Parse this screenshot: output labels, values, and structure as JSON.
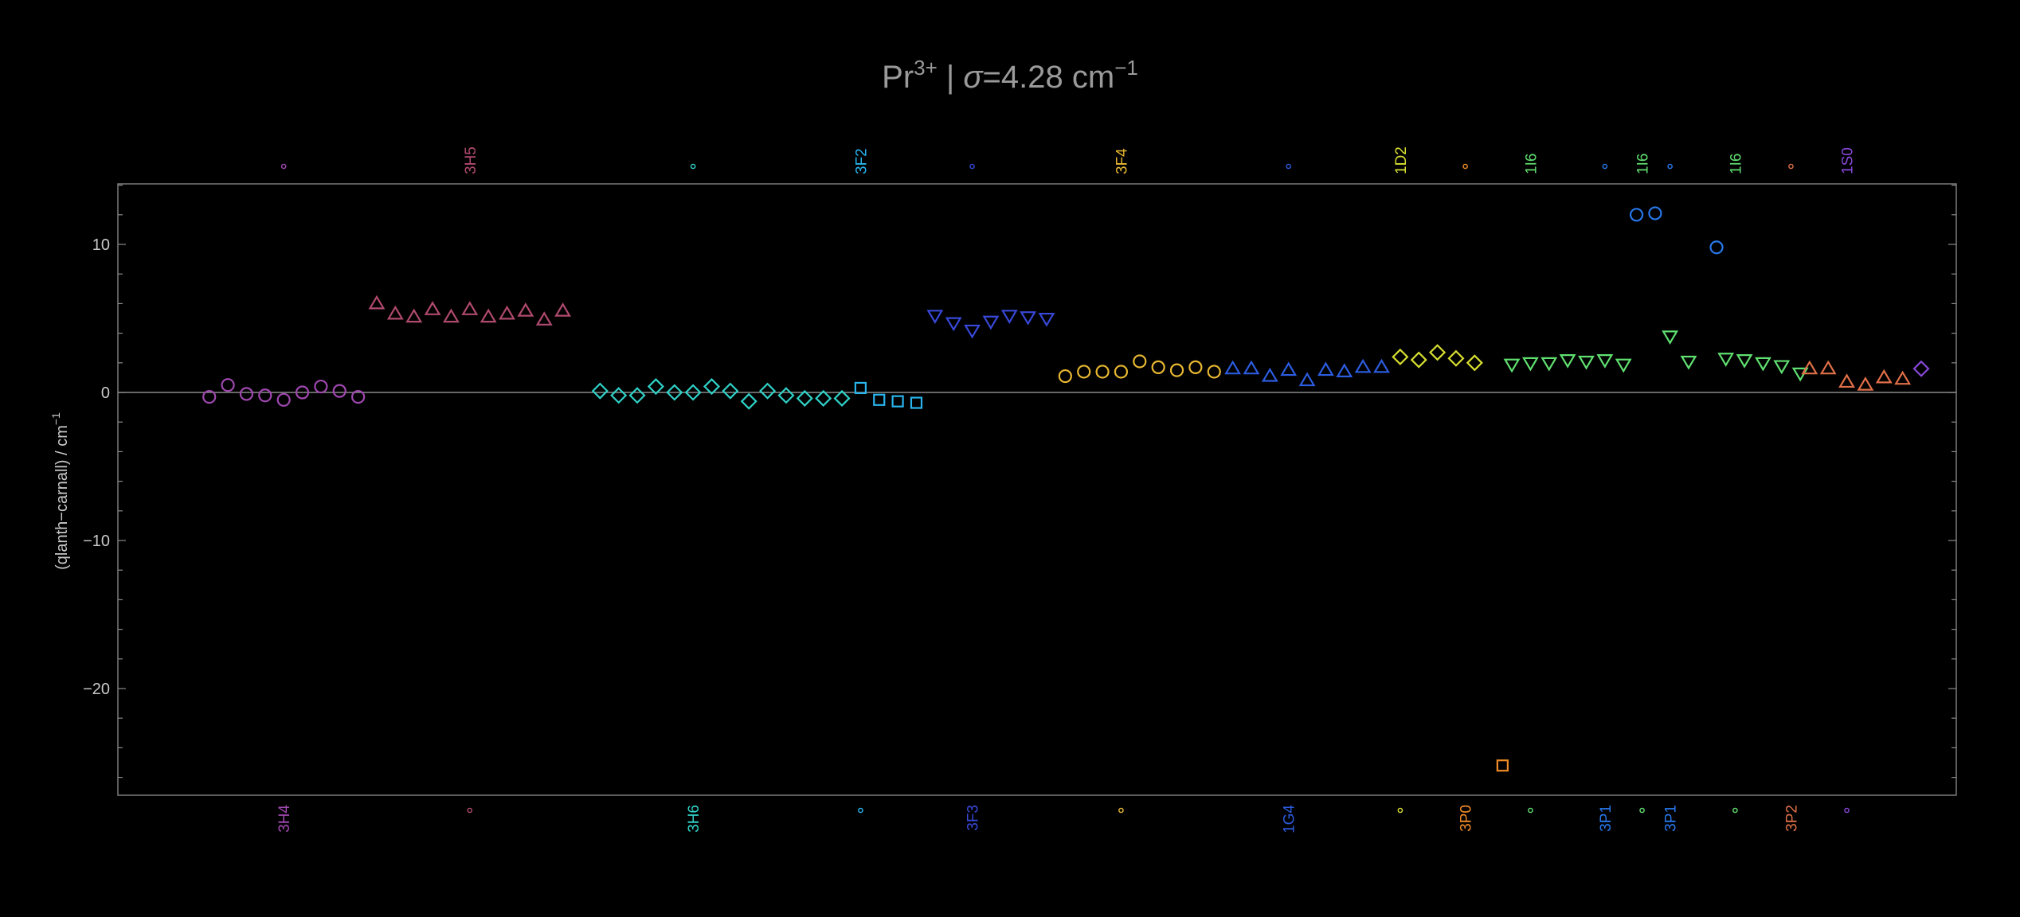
{
  "title": {
    "main_prefix": "Pr",
    "superscript": "3+",
    "separator": " | ",
    "sigma_symbol": "σ",
    "sigma_text": "=4.28 cm",
    "sigma_unit_exp": "−1"
  },
  "chart_data": {
    "type": "scatter",
    "ylabel_text": "(qlanth−carnall) / cm",
    "ylabel_exp": "−1",
    "ylim": [
      -27.5,
      14
    ],
    "xlim": [
      0.5,
      91
    ],
    "yticks_major": [
      10,
      0,
      -10,
      -20
    ],
    "ytick_labels": [
      "10",
      "0",
      "−10",
      "−20"
    ],
    "zero_line": true,
    "grid": false,
    "colors": {
      "3H4": "#a048b0",
      "3H5": "#b04a6e",
      "3H6": "#30d2c8",
      "3F2": "#28b4ec",
      "3F3": "#3848d8",
      "3F4": "#e8b832",
      "1G4": "#2c5ce0",
      "1D2": "#d8e030",
      "3P0": "#f08c28",
      "1I6": "#60e070",
      "3P1": "#2878ec",
      "3P2": "#e07048",
      "1S0": "#8848d8"
    },
    "top_labels": [
      {
        "text": "3H5",
        "state": "3H5",
        "x": 17
      },
      {
        "text": "3F2",
        "state": "3F2",
        "x": 38
      },
      {
        "text": "3F4",
        "state": "3F4",
        "x": 52
      },
      {
        "text": "1D2",
        "state": "1D2",
        "x": 67
      },
      {
        "text": "1I6",
        "state": "1I6",
        "x": 74
      },
      {
        "text": "1I6",
        "state": "1I6",
        "x": 80
      },
      {
        "text": "1I6",
        "state": "1I6",
        "x": 85
      },
      {
        "text": "1S0",
        "state": "1S0",
        "x": 91
      }
    ],
    "top_dots": [
      {
        "state": "3H4",
        "x": 7
      },
      {
        "state": "3H6",
        "x": 29
      },
      {
        "state": "3F3",
        "x": 44
      },
      {
        "state": "1G4",
        "x": 61
      },
      {
        "state": "3P0",
        "x": 70.5
      },
      {
        "state": "3P1",
        "x": 78
      },
      {
        "state": "3P1",
        "x": 81.5
      },
      {
        "state": "3P2",
        "x": 88
      }
    ],
    "bottom_labels": [
      {
        "text": "3H4",
        "state": "3H4",
        "x": 7
      },
      {
        "text": "3H6",
        "state": "3H6",
        "x": 29
      },
      {
        "text": "3F3",
        "state": "3F3",
        "x": 44
      },
      {
        "text": "1G4",
        "state": "1G4",
        "x": 61
      },
      {
        "text": "3P0",
        "state": "3P0",
        "x": 70.5
      },
      {
        "text": "3P1",
        "state": "3P1",
        "x": 78
      },
      {
        "text": "3P1",
        "state": "3P1",
        "x": 81.5
      },
      {
        "text": "3P2",
        "state": "3P2",
        "x": 88
      }
    ],
    "bottom_dots": [
      {
        "state": "3H5",
        "x": 17
      },
      {
        "state": "3F2",
        "x": 38
      },
      {
        "state": "3F4",
        "x": 52
      },
      {
        "state": "1D2",
        "x": 67
      },
      {
        "state": "1I6",
        "x": 74
      },
      {
        "state": "1I6",
        "x": 80
      },
      {
        "state": "1I6",
        "x": 85
      },
      {
        "state": "1S0",
        "x": 91
      }
    ],
    "series": [
      {
        "state": "3H4",
        "marker": "circle",
        "x": [
          3,
          4,
          5,
          6,
          7,
          8,
          9,
          10,
          11
        ],
        "y": [
          -0.3,
          0.5,
          -0.1,
          -0.2,
          -0.5,
          -0.0,
          0.4,
          0.1,
          -0.3
        ]
      },
      {
        "state": "3H5",
        "marker": "triangle-up",
        "x": [
          12,
          13,
          14,
          15,
          16,
          17,
          18,
          19,
          20,
          21,
          22
        ],
        "y": [
          6.0,
          5.3,
          5.1,
          5.6,
          5.1,
          5.6,
          5.1,
          5.3,
          5.5,
          4.9,
          5.5
        ]
      },
      {
        "state": "3H6",
        "marker": "diamond",
        "x": [
          24,
          25,
          26,
          27,
          28,
          29,
          30,
          31,
          32,
          33,
          34,
          35,
          36,
          37
        ],
        "y": [
          0.1,
          -0.2,
          -0.2,
          0.4,
          0.0,
          0.0,
          0.4,
          0.1,
          -0.6,
          0.1,
          -0.2,
          -0.4,
          -0.4,
          -0.4
        ]
      },
      {
        "state": "3F2",
        "marker": "square",
        "x": [
          38,
          39,
          40,
          41
        ],
        "y": [
          0.3,
          -0.5,
          -0.6,
          -0.7
        ]
      },
      {
        "state": "3F3",
        "marker": "triangle-down",
        "x": [
          42,
          43,
          44,
          45,
          46,
          47,
          48
        ],
        "y": [
          5.2,
          4.7,
          4.2,
          4.8,
          5.2,
          5.1,
          5.0
        ]
      },
      {
        "state": "3F4",
        "marker": "circle",
        "x": [
          49,
          50,
          51,
          52,
          53,
          54,
          55,
          56,
          57
        ],
        "y": [
          1.1,
          1.4,
          1.4,
          1.4,
          2.1,
          1.7,
          1.5,
          1.7,
          1.4
        ]
      },
      {
        "state": "1G4",
        "marker": "triangle-up",
        "x": [
          58,
          59,
          60,
          61,
          62,
          63,
          64,
          65,
          66
        ],
        "y": [
          1.6,
          1.6,
          1.1,
          1.5,
          0.8,
          1.5,
          1.4,
          1.7,
          1.7
        ]
      },
      {
        "state": "1D2",
        "marker": "diamond",
        "x": [
          67,
          68,
          69,
          70,
          71
        ],
        "y": [
          2.4,
          2.2,
          2.7,
          2.3,
          2.0
        ]
      },
      {
        "state": "3P0",
        "marker": "square",
        "x": [
          72.5
        ],
        "y": [
          -25.2
        ]
      },
      {
        "state": "1I6",
        "marker": "triangle-down",
        "x": [
          73,
          74,
          75,
          76,
          77
        ],
        "y": [
          1.9,
          2.0,
          2.0,
          2.2,
          2.1
        ]
      },
      {
        "state": "1I6",
        "marker": "triangle-down",
        "x": [
          78,
          79
        ],
        "y": [
          2.2,
          1.9
        ]
      },
      {
        "state": "3P1",
        "marker": "circle",
        "x": [
          79.7,
          80.7
        ],
        "y": [
          12.0,
          12.1
        ]
      },
      {
        "state": "1I6",
        "marker": "triangle-down",
        "x": [
          81.5,
          82.5
        ],
        "y": [
          3.8,
          2.1
        ]
      },
      {
        "state": "3P1",
        "marker": "circle",
        "x": [
          84
        ],
        "y": [
          9.8
        ]
      },
      {
        "state": "1I6",
        "marker": "triangle-down",
        "x": [
          84.5,
          85.5,
          86.5,
          87.5,
          88.5
        ],
        "y": [
          2.3,
          2.2,
          2.0,
          1.8,
          1.3
        ]
      },
      {
        "state": "3P2",
        "marker": "triangle-up",
        "x": [
          89,
          90,
          91,
          92,
          93,
          94
        ],
        "y": [
          1.6,
          1.6,
          0.7,
          0.5,
          1.0,
          0.9
        ]
      },
      {
        "state": "1S0",
        "marker": "diamond",
        "x": [
          95
        ],
        "y": [
          1.6
        ]
      }
    ]
  }
}
